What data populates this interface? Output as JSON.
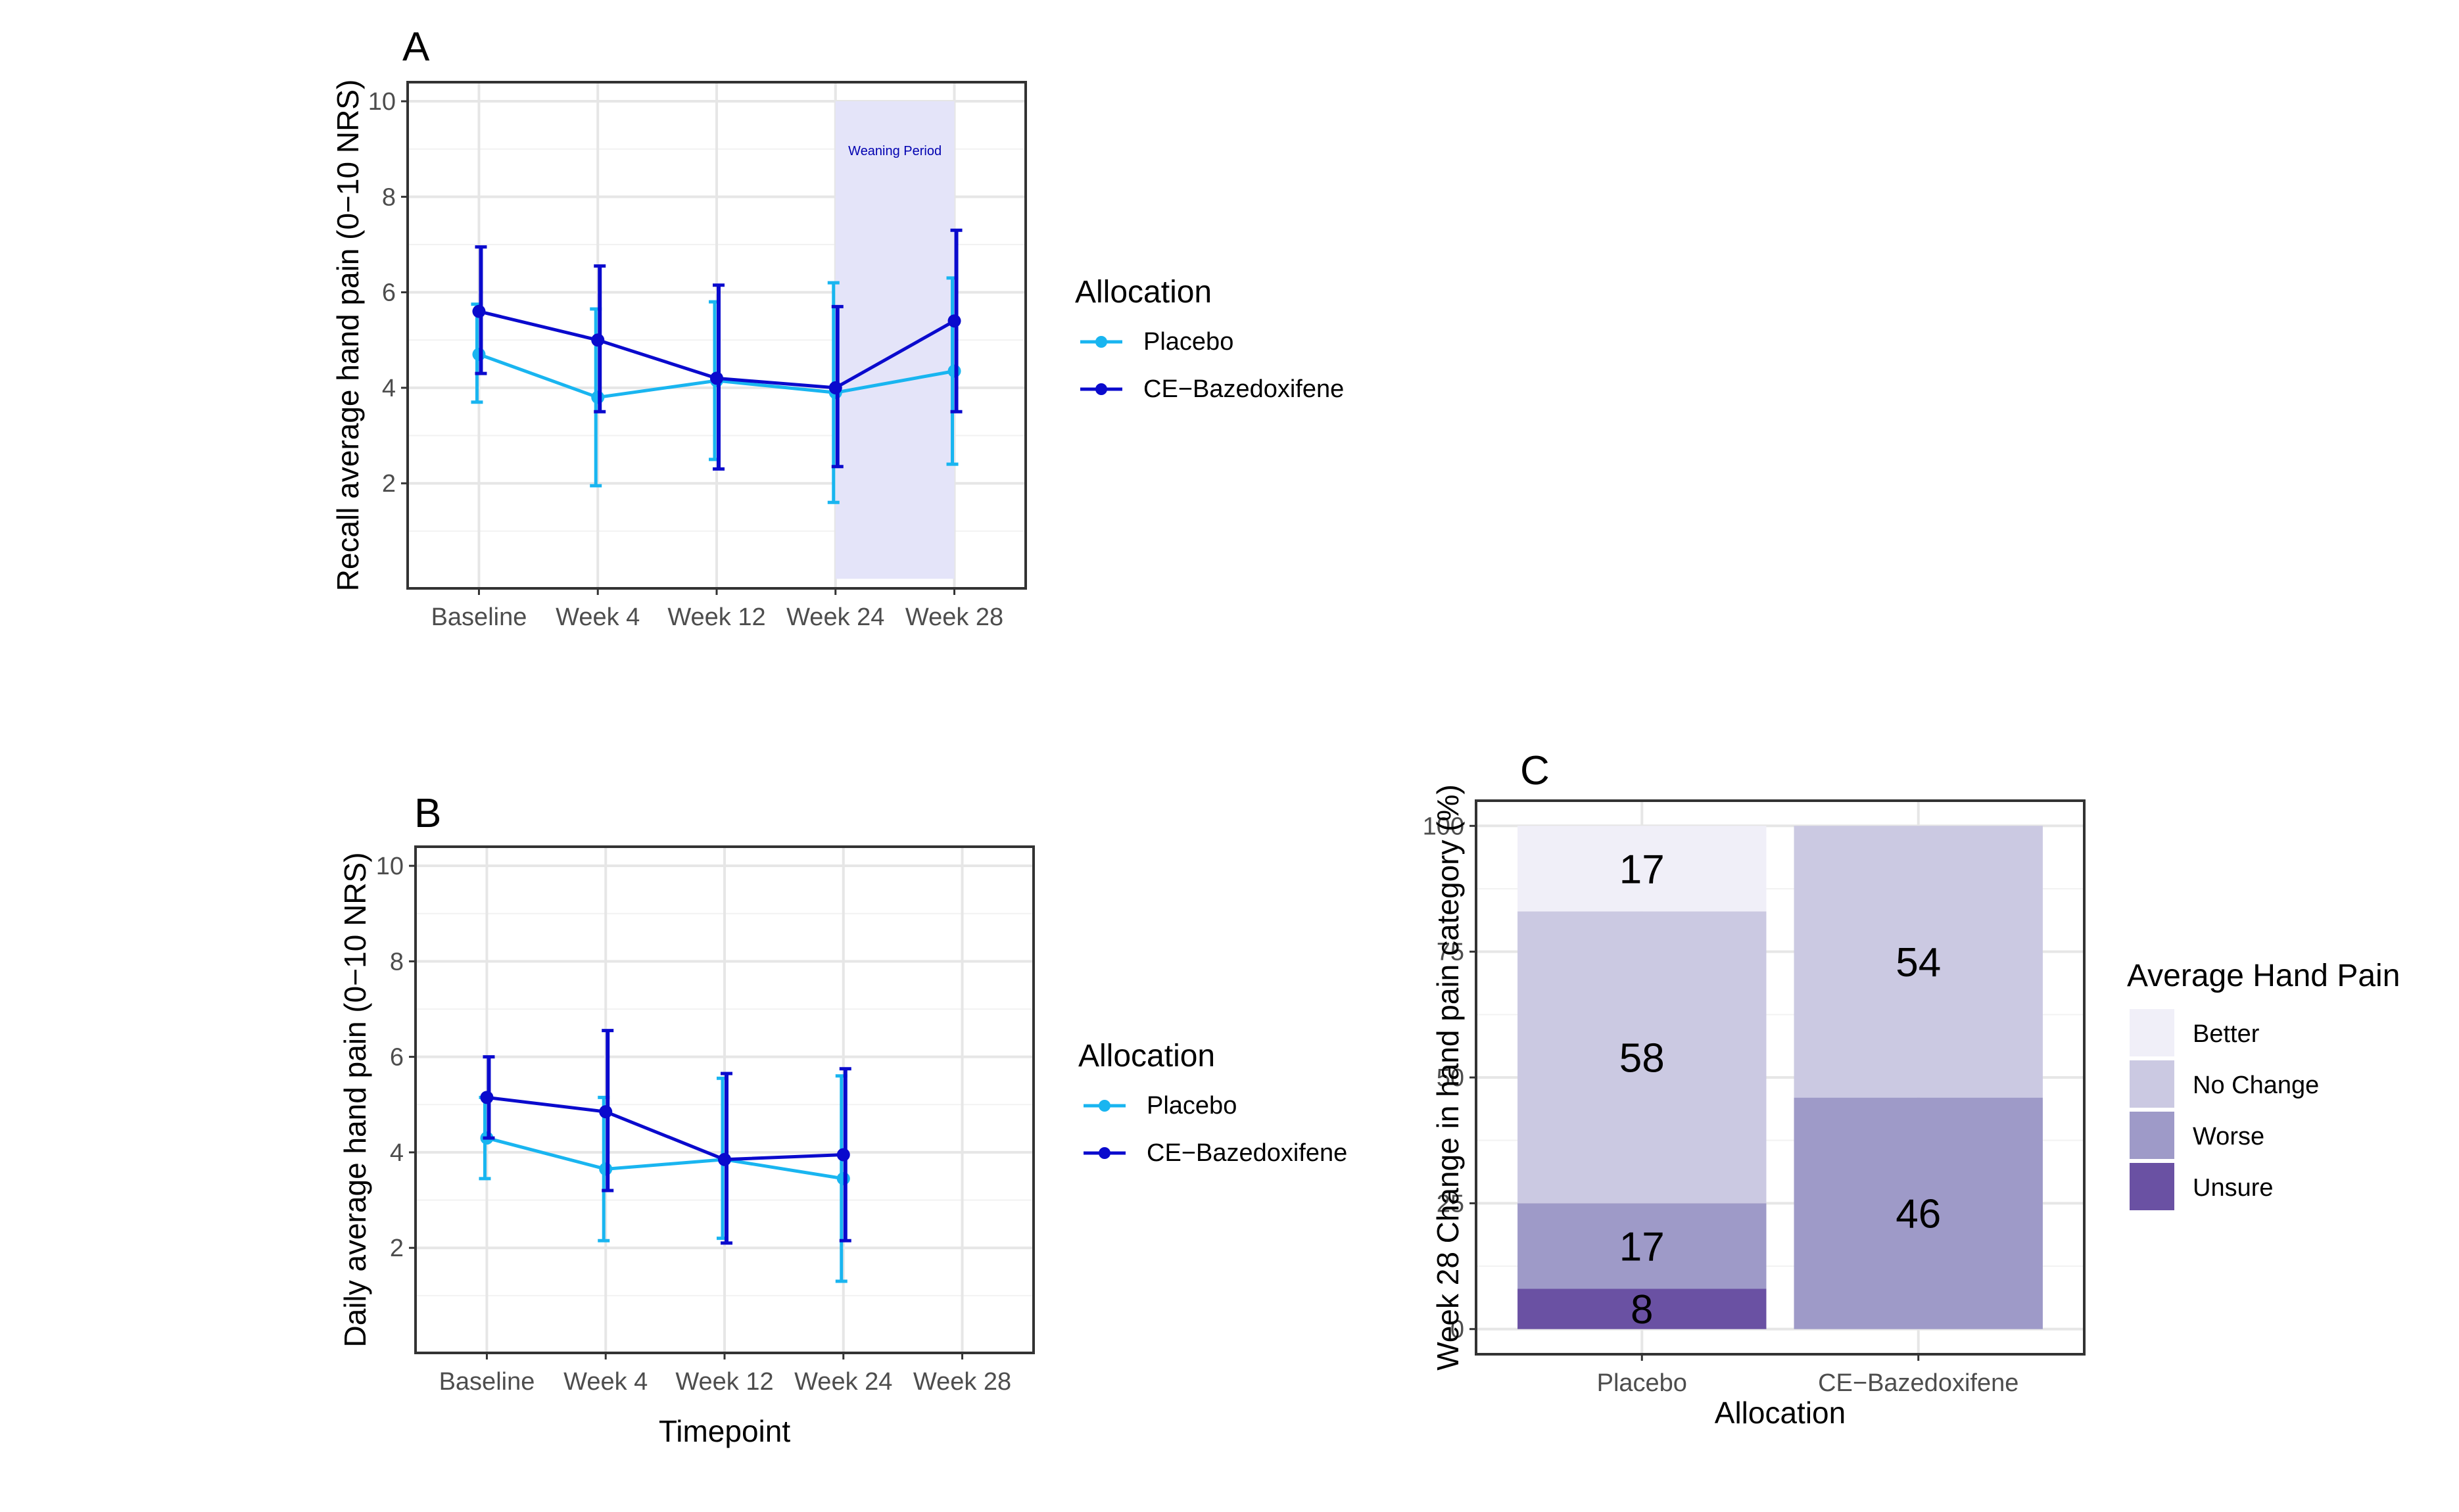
{
  "chart_data": [
    {
      "type": "line",
      "panel": "A",
      "xlabel": "",
      "ylabel": "Recall average hand pain (0−10 NRS)",
      "categories": [
        "Baseline",
        "Week 4",
        "Week 12",
        "Week 24",
        "Week 28"
      ],
      "yticks": [
        2,
        4,
        6,
        8,
        10
      ],
      "ylim": [
        -0.2,
        10.4
      ],
      "grid": true,
      "shaded_region": {
        "from": "Week 24",
        "to": "Week 28",
        "y_from": 0,
        "y_to": 10,
        "label": "Weaning Period",
        "color": "#e4e4f9"
      },
      "legend_title": "Allocation",
      "legend_position": "right",
      "series": [
        {
          "name": "Placebo",
          "color": "#19b5f0",
          "values": [
            4.7,
            3.8,
            4.15,
            3.9,
            4.35
          ],
          "lower": [
            3.7,
            1.95,
            2.5,
            1.6,
            2.4
          ],
          "upper": [
            5.75,
            5.65,
            5.8,
            6.2,
            6.3
          ]
        },
        {
          "name": "CE−Bazedoxifene",
          "color": "#0a0acd",
          "values": [
            5.6,
            5.0,
            4.2,
            4.0,
            5.4
          ],
          "lower": [
            4.3,
            3.5,
            2.3,
            2.35,
            3.5
          ],
          "upper": [
            6.95,
            6.55,
            6.15,
            5.7,
            7.3
          ]
        }
      ]
    },
    {
      "type": "line",
      "panel": "B",
      "xlabel": "Timepoint",
      "ylabel": "Daily average hand pain (0−10 NRS)",
      "categories": [
        "Baseline",
        "Week 4",
        "Week 12",
        "Week 24",
        "Week 28"
      ],
      "yticks": [
        2,
        4,
        6,
        8,
        10
      ],
      "ylim": [
        -0.2,
        10.4
      ],
      "grid": true,
      "legend_title": "Allocation",
      "legend_position": "right",
      "series": [
        {
          "name": "Placebo",
          "color": "#19b5f0",
          "values": [
            4.3,
            3.65,
            3.85,
            3.45,
            null
          ],
          "lower": [
            3.45,
            2.15,
            2.2,
            1.3,
            null
          ],
          "upper": [
            5.15,
            5.15,
            5.55,
            5.6,
            null
          ]
        },
        {
          "name": "CE−Bazedoxifene",
          "color": "#0a0acd",
          "values": [
            5.15,
            4.85,
            3.85,
            3.95,
            null
          ],
          "lower": [
            4.3,
            3.2,
            2.1,
            2.15,
            null
          ],
          "upper": [
            6.0,
            6.55,
            5.65,
            5.75,
            null
          ]
        }
      ]
    },
    {
      "type": "bar",
      "stacked": true,
      "panel": "C",
      "xlabel": "Allocation",
      "ylabel": "Week 28 Change in hand pain category (%)",
      "categories": [
        "Placebo",
        "CE−Bazedoxifene"
      ],
      "yticks": [
        0,
        25,
        50,
        75,
        100
      ],
      "ylim": [
        -5,
        105
      ],
      "grid": true,
      "legend_title": "Average Hand Pain",
      "legend_position": "right",
      "series": [
        {
          "name": "Unsure",
          "color": "#6a51a3",
          "values": [
            8,
            0
          ]
        },
        {
          "name": "Worse",
          "color": "#9e9ac8",
          "values": [
            17,
            46
          ]
        },
        {
          "name": "No Change",
          "color": "#cbc9e2",
          "values": [
            58,
            54
          ]
        },
        {
          "name": "Better",
          "color": "#f0eff8",
          "values": [
            17,
            0
          ]
        }
      ],
      "legend_order": [
        "Better",
        "No Change",
        "Worse",
        "Unsure"
      ]
    }
  ]
}
